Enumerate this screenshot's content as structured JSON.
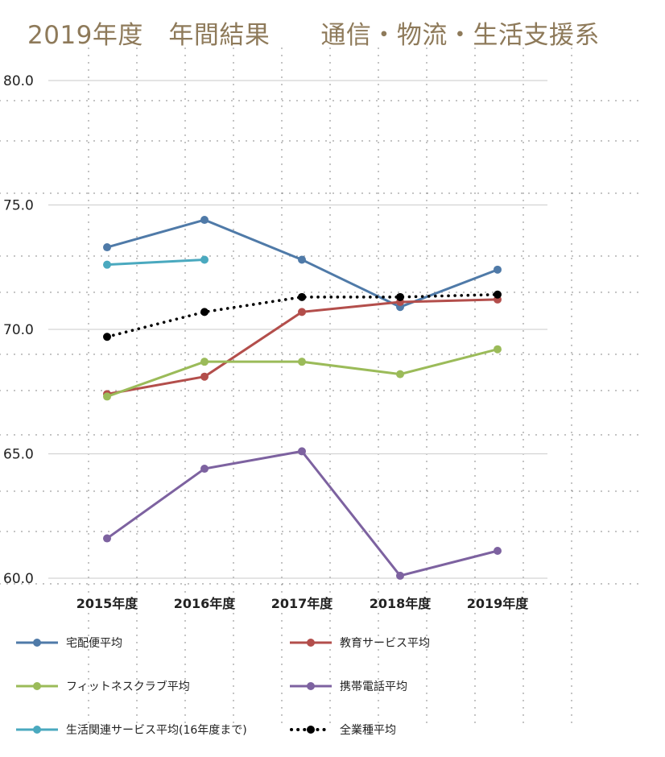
{
  "chart_data": {
    "type": "line",
    "title": "2019年度　年間結果　　通信・物流・生活支援系",
    "xlabel": "",
    "ylabel": "",
    "categories": [
      "2015年度",
      "2016年度",
      "2017年度",
      "2018年度",
      "2019年度"
    ],
    "ylim": [
      60,
      80
    ],
    "yticks": [
      "60.0",
      "65.0",
      "70.0",
      "75.0",
      "80.0"
    ],
    "grid": true,
    "legend_position": "bottom",
    "series": [
      {
        "name": "宅配便平均",
        "color": "#4f7aa8",
        "style": "solid",
        "values": [
          73.3,
          74.4,
          72.8,
          70.9,
          72.4
        ]
      },
      {
        "name": "教育サービス平均",
        "color": "#b34e4b",
        "style": "solid",
        "values": [
          67.4,
          68.1,
          70.7,
          71.1,
          71.2
        ]
      },
      {
        "name": "フィットネスクラブ平均",
        "color": "#9bbb59",
        "style": "solid",
        "values": [
          67.3,
          68.7,
          68.7,
          68.2,
          69.2
        ]
      },
      {
        "name": "携帯電話平均",
        "color": "#7d62a0",
        "style": "solid",
        "values": [
          61.6,
          64.4,
          65.1,
          60.1,
          61.1
        ]
      },
      {
        "name": "生活関連サービス平均(16年度まで)",
        "color": "#4aa9bf",
        "style": "solid",
        "values": [
          72.6,
          72.8,
          null,
          null,
          null
        ]
      },
      {
        "name": "全業種平均",
        "color": "#000000",
        "style": "dotted",
        "values": [
          69.7,
          70.7,
          71.3,
          71.3,
          71.4
        ]
      }
    ]
  }
}
